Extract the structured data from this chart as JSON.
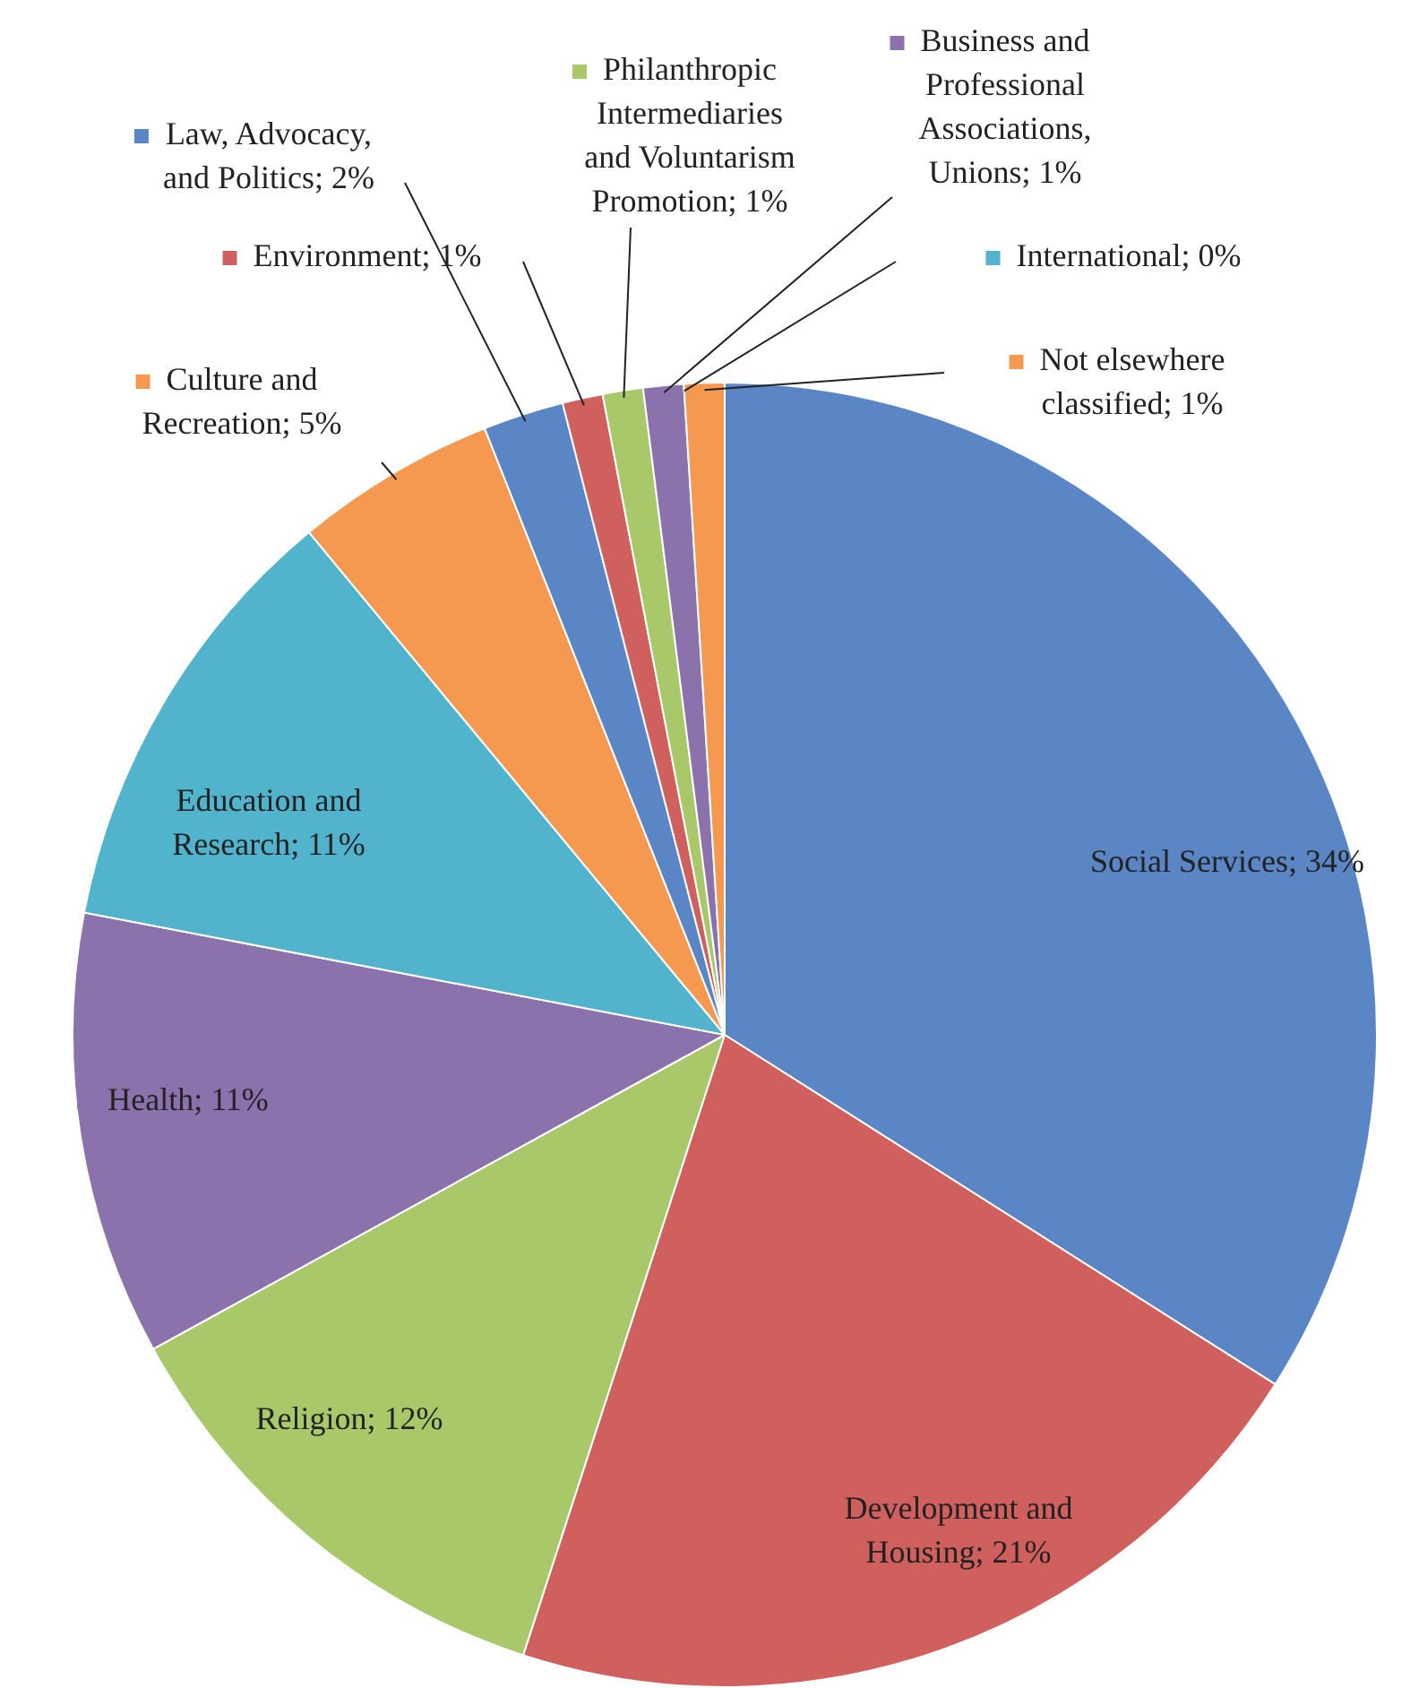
{
  "chart_data": {
    "type": "pie",
    "categories": [
      "Social Services",
      "Development and Housing",
      "Religion",
      "Health",
      "Education and Research",
      "Culture and Recreation",
      "Law, Advocacy, and Politics",
      "Environment",
      "Philanthropic Intermediaries and Voluntarism Promotion",
      "Business and Professional Associations, Unions",
      "International",
      "Not elsewhere classified"
    ],
    "values": [
      34,
      21,
      12,
      11,
      11,
      5,
      2,
      1,
      1,
      1,
      0,
      1
    ],
    "value_labels": [
      "34%",
      "21%",
      "12%",
      "11%",
      "11%",
      "5%",
      "2%",
      "1%",
      "1%",
      "1%",
      "0%",
      "1%"
    ],
    "colors": [
      "#5b86c6",
      "#d0605e",
      "#a9c86a",
      "#8c72ad",
      "#52b3cc",
      "#f4994f",
      "#5b86c6",
      "#d0605e",
      "#a9c86a",
      "#8c72ad",
      "#52b3cc",
      "#f4994f"
    ],
    "legend": "top"
  }
}
